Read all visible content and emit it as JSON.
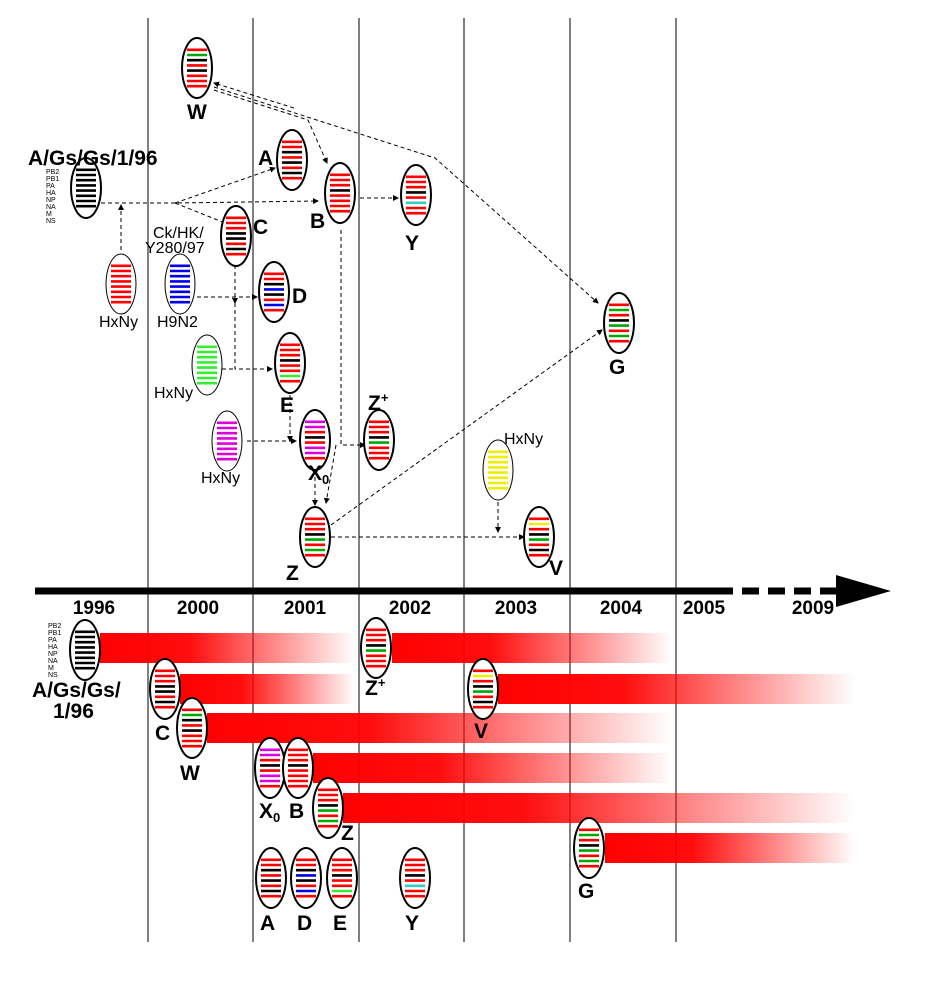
{
  "colors": {
    "red": "#ff0000",
    "black": "#000000",
    "green": "#00aa00",
    "blue": "#0000ee",
    "lightgreen": "#33ee33",
    "magenta": "#dd00dd",
    "yellow": "#eeee00",
    "cyan": "#33cccc"
  },
  "segments": [
    "PB2",
    "PB1",
    "PA",
    "HA",
    "NP",
    "NA",
    "M",
    "NS"
  ],
  "labels": {
    "agsgs_top": "A/Gs/Gs/1/96",
    "agsgs_bottom_1": "A/Gs/Gs/",
    "agsgs_bottom_2": "1/96",
    "ck_1": "Ck/HK/",
    "ck_2": "Y280/97",
    "h9n2": "H9N2",
    "hxny": "HxNy",
    "W": "W",
    "A": "A",
    "B": "B",
    "C": "C",
    "D": "D",
    "E": "E",
    "X": "X",
    "X_sub": "0",
    "Y": "Y",
    "Z": "Z",
    "Z_sup": "+",
    "G": "G",
    "V": "V"
  },
  "timeline": {
    "years": [
      "1996",
      "2000",
      "2001",
      "2002",
      "2003",
      "2004",
      "2005",
      "2009"
    ]
  },
  "viruses": {
    "AGsGs": [
      "black",
      "black",
      "black",
      "black",
      "black",
      "black",
      "black",
      "black"
    ],
    "HxNy_red": [
      "red",
      "red",
      "red",
      "red",
      "red",
      "red",
      "red",
      "red"
    ],
    "H9N2": [
      "blue",
      "blue",
      "blue",
      "blue",
      "blue",
      "blue",
      "blue",
      "blue"
    ],
    "HxNy_green": [
      "lightgreen",
      "lightgreen",
      "lightgreen",
      "lightgreen",
      "lightgreen",
      "lightgreen",
      "lightgreen",
      "lightgreen"
    ],
    "HxNy_magenta": [
      "magenta",
      "magenta",
      "magenta",
      "magenta",
      "magenta",
      "magenta",
      "magenta",
      "magenta"
    ],
    "HxNy_yellow": [
      "yellow",
      "yellow",
      "yellow",
      "yellow",
      "yellow",
      "yellow",
      "yellow",
      "yellow"
    ],
    "W": [
      "red",
      "green",
      "black",
      "red",
      "black",
      "red",
      "red",
      "red"
    ],
    "A": [
      "red",
      "red",
      "black",
      "red",
      "black",
      "red",
      "black",
      "red"
    ],
    "B": [
      "red",
      "red",
      "red",
      "black",
      "red",
      "red",
      "red",
      "red"
    ],
    "C": [
      "red",
      "red",
      "red",
      "black",
      "black",
      "red",
      "black",
      "red"
    ],
    "D": [
      "red",
      "red",
      "black",
      "blue",
      "black",
      "red",
      "blue",
      "red"
    ],
    "E": [
      "red",
      "red",
      "red",
      "black",
      "red",
      "red",
      "lightgreen",
      "red"
    ],
    "X0": [
      "magenta",
      "magenta",
      "red",
      "black",
      "red",
      "magenta",
      "magenta",
      "red"
    ],
    "Zplus": [
      "red",
      "red",
      "red",
      "black",
      "green",
      "red",
      "red",
      "red"
    ],
    "Y": [
      "red",
      "red",
      "red",
      "black",
      "red",
      "cyan",
      "red",
      "red"
    ],
    "Z": [
      "red",
      "red",
      "red",
      "black",
      "green",
      "red",
      "green",
      "red"
    ],
    "G": [
      "red",
      "green",
      "red",
      "black",
      "green",
      "red",
      "green",
      "red"
    ],
    "V": [
      "red",
      "yellow",
      "red",
      "black",
      "green",
      "red",
      "black",
      "red"
    ]
  }
}
